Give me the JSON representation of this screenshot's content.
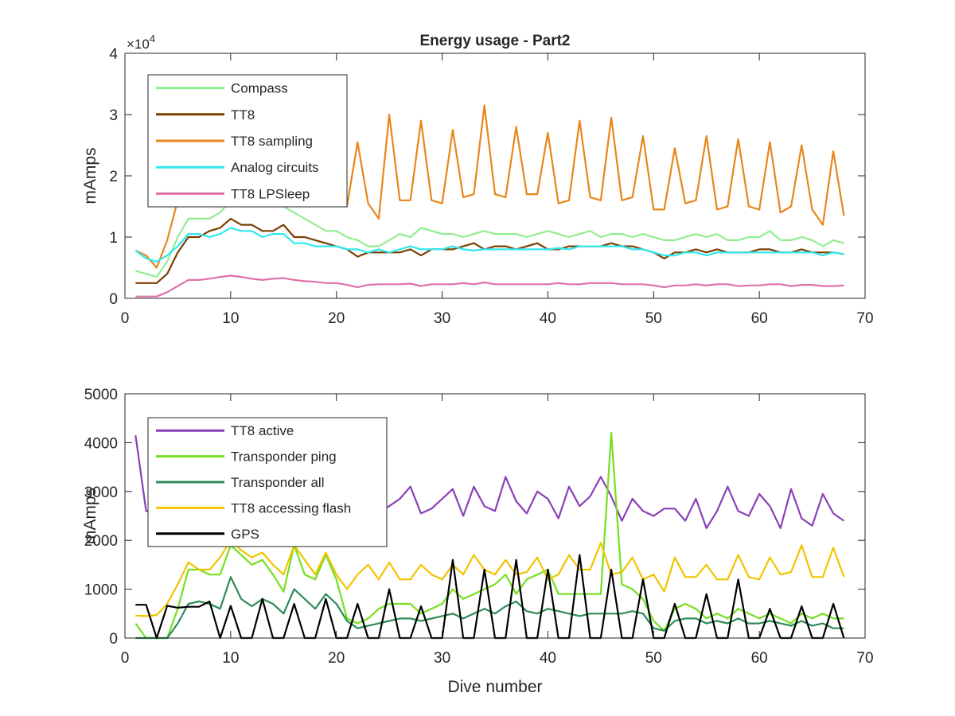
{
  "chart_data": [
    {
      "type": "line",
      "title": "Energy usage - Part2",
      "xlabel": "",
      "ylabel": "mAmps",
      "exponent_label": "×10",
      "exponent_power": "4",
      "xlim": [
        0,
        70
      ],
      "ylim": [
        0,
        40000
      ],
      "xticks": [
        0,
        10,
        20,
        30,
        40,
        50,
        60,
        70
      ],
      "yticks": [
        0,
        10000,
        20000,
        30000,
        40000
      ],
      "ytick_labels": [
        "0",
        "1",
        "2",
        "3",
        "4"
      ],
      "legend_position": "top-left",
      "series": [
        {
          "name": "Compass",
          "color": "#90ee90",
          "x_start": 1,
          "values": [
            4500,
            4000,
            3500,
            6000,
            10000,
            13000,
            13000,
            13000,
            14000,
            16000,
            15000,
            15000,
            15000,
            15000,
            15000,
            14000,
            13000,
            12000,
            11000,
            11000,
            10000,
            9500,
            8500,
            8500,
            9500,
            10500,
            10000,
            11500,
            11000,
            10500,
            10500,
            10000,
            10500,
            11000,
            10500,
            10500,
            10500,
            10000,
            10500,
            11000,
            10500,
            10000,
            10500,
            11000,
            10000,
            10500,
            10500,
            10000,
            10500,
            10000,
            9500,
            9500,
            10000,
            10500,
            10000,
            10500,
            9500,
            9500,
            10000,
            10000,
            11000,
            9500,
            9500,
            10000,
            9500,
            8500,
            9500,
            9000
          ]
        },
        {
          "name": "TT8",
          "color": "#7b3f00",
          "x_start": 1,
          "values": [
            2500,
            2500,
            2500,
            4000,
            7500,
            10000,
            10000,
            11000,
            11500,
            13000,
            12000,
            12000,
            11000,
            11000,
            12000,
            10000,
            10000,
            9500,
            9000,
            8500,
            8000,
            6800,
            7500,
            7500,
            7500,
            7500,
            8000,
            7000,
            8000,
            8000,
            8000,
            8500,
            9000,
            8000,
            8500,
            8500,
            8000,
            8500,
            9000,
            8000,
            8000,
            8500,
            8500,
            8500,
            8500,
            9000,
            8500,
            8500,
            8000,
            7500,
            6500,
            7500,
            7500,
            8000,
            7500,
            8000,
            7500,
            7500,
            7500,
            8000,
            8000,
            7500,
            7500,
            8000,
            7500,
            7500,
            7500,
            7200
          ]
        },
        {
          "name": "TT8 sampling",
          "color": "#e8861a",
          "x_start": 1,
          "values": [
            7800,
            7000,
            5000,
            9500,
            16000,
            20000,
            22000,
            22000,
            23000,
            24000,
            24000,
            23000,
            24000,
            22000,
            21000,
            22000,
            21000,
            20000,
            19000,
            17000,
            15000,
            25500,
            15500,
            13000,
            30000,
            16000,
            16000,
            29000,
            16000,
            15500,
            27500,
            16500,
            17000,
            31500,
            17000,
            16500,
            28000,
            17000,
            17000,
            27000,
            15500,
            16000,
            29000,
            16500,
            16000,
            29500,
            16000,
            16500,
            26500,
            14500,
            14500,
            24500,
            15500,
            16000,
            26500,
            14500,
            15000,
            26000,
            15000,
            14500,
            25500,
            14000,
            15000,
            25000,
            14500,
            12000,
            24000,
            13500
          ]
        },
        {
          "name": "Analog circuits",
          "color": "#30e8ef",
          "x_start": 1,
          "values": [
            7800,
            6500,
            6000,
            7000,
            8500,
            10500,
            10500,
            10000,
            10500,
            11500,
            11000,
            11000,
            10000,
            10500,
            10500,
            9000,
            9000,
            8500,
            8500,
            8500,
            8000,
            8000,
            7500,
            8000,
            7500,
            8000,
            8500,
            8000,
            8000,
            8000,
            8500,
            8000,
            7800,
            8000,
            8000,
            8000,
            8000,
            8000,
            8000,
            8000,
            8200,
            8000,
            8500,
            8500,
            8500,
            8500,
            8500,
            8000,
            8000,
            7500,
            7000,
            7000,
            7500,
            7500,
            7000,
            7500,
            7500,
            7500,
            7500,
            7500,
            7500,
            7500,
            7500,
            7500,
            7500,
            7000,
            7500,
            7200
          ]
        },
        {
          "name": "TT8 LPSleep",
          "color": "#e070a8",
          "x_start": 1,
          "values": [
            300,
            300,
            300,
            1000,
            2000,
            3000,
            3000,
            3200,
            3500,
            3700,
            3500,
            3200,
            3000,
            3200,
            3300,
            3000,
            2800,
            2700,
            2500,
            2500,
            2200,
            1800,
            2200,
            2300,
            2300,
            2300,
            2400,
            2000,
            2300,
            2300,
            2300,
            2500,
            2300,
            2600,
            2300,
            2300,
            2300,
            2300,
            2300,
            2300,
            2500,
            2300,
            2300,
            2500,
            2500,
            2500,
            2300,
            2300,
            2300,
            2100,
            1800,
            2100,
            2100,
            2300,
            2100,
            2300,
            2300,
            2000,
            2100,
            2100,
            2300,
            2300,
            2000,
            2200,
            2200,
            2000,
            2000,
            2100
          ]
        }
      ]
    },
    {
      "type": "line",
      "title": "",
      "xlabel": "Dive number",
      "ylabel": "mAmps",
      "xlim": [
        0,
        70
      ],
      "ylim": [
        0,
        5000
      ],
      "xticks": [
        0,
        10,
        20,
        30,
        40,
        50,
        60,
        70
      ],
      "yticks": [
        0,
        1000,
        2000,
        3000,
        4000,
        5000
      ],
      "ytick_labels": [
        "0",
        "1000",
        "2000",
        "3000",
        "4000",
        "5000"
      ],
      "legend_position": "top-left",
      "series": [
        {
          "name": "TT8 active",
          "color": "#8a3fb8",
          "x_start": 1,
          "values": [
            4150,
            2600,
            2600,
            2600,
            2800,
            2800,
            2800,
            2800,
            2800,
            2800,
            2800,
            2800,
            2800,
            2800,
            2800,
            2800,
            2800,
            2800,
            2800,
            2800,
            2800,
            2800,
            2700,
            2600,
            2700,
            2850,
            3100,
            2550,
            2650,
            2850,
            3050,
            2500,
            3100,
            2700,
            2600,
            3300,
            2800,
            2550,
            3000,
            2850,
            2450,
            3100,
            2700,
            2900,
            3300,
            2900,
            2400,
            2850,
            2600,
            2500,
            2650,
            2650,
            2400,
            2850,
            2250,
            2600,
            3100,
            2600,
            2500,
            2950,
            2700,
            2250,
            3050,
            2450,
            2300,
            2950,
            2550,
            2400
          ]
        },
        {
          "name": "Transponder ping",
          "color": "#76e020",
          "x_start": 1,
          "values": [
            300,
            0,
            0,
            0,
            600,
            1400,
            1400,
            1300,
            1300,
            1900,
            1700,
            1500,
            1600,
            1300,
            950,
            1900,
            1300,
            1200,
            1700,
            1200,
            400,
            300,
            400,
            600,
            700,
            700,
            700,
            500,
            600,
            700,
            1000,
            800,
            900,
            1000,
            1100,
            1300,
            900,
            1200,
            1300,
            1400,
            900,
            900,
            900,
            900,
            900,
            4200,
            1100,
            1000,
            800,
            350,
            150,
            600,
            700,
            600,
            400,
            500,
            400,
            600,
            500,
            400,
            500,
            400,
            300,
            500,
            400,
            500,
            400,
            400
          ]
        },
        {
          "name": "Transponder all",
          "color": "#2e8b57",
          "x_start": 1,
          "values": [
            0,
            0,
            0,
            0,
            300,
            700,
            750,
            700,
            600,
            1250,
            800,
            650,
            800,
            700,
            500,
            1000,
            800,
            600,
            900,
            700,
            350,
            200,
            250,
            300,
            350,
            400,
            400,
            350,
            400,
            450,
            500,
            400,
            500,
            600,
            500,
            650,
            750,
            550,
            500,
            600,
            550,
            500,
            450,
            500,
            500,
            500,
            500,
            550,
            500,
            200,
            150,
            350,
            400,
            400,
            300,
            350,
            300,
            400,
            300,
            300,
            350,
            300,
            250,
            350,
            250,
            300,
            200,
            200
          ]
        },
        {
          "name": "TT8 accessing flash",
          "color": "#f0c400",
          "x_start": 1,
          "values": [
            460,
            450,
            470,
            700,
            1100,
            1550,
            1400,
            1400,
            1650,
            2000,
            1800,
            1650,
            1750,
            1500,
            1300,
            1900,
            1600,
            1300,
            1750,
            1300,
            1000,
            1300,
            1500,
            1200,
            1550,
            1200,
            1200,
            1500,
            1300,
            1200,
            1500,
            1300,
            1700,
            1400,
            1300,
            1600,
            1300,
            1350,
            1650,
            1200,
            1300,
            1700,
            1400,
            1400,
            1950,
            1300,
            1350,
            1650,
            1200,
            1300,
            950,
            1650,
            1250,
            1250,
            1500,
            1200,
            1200,
            1700,
            1250,
            1200,
            1650,
            1300,
            1350,
            1900,
            1250,
            1250,
            1850,
            1250
          ]
        },
        {
          "name": "GPS",
          "color": "#000000",
          "x_start": 1,
          "values": [
            680,
            680,
            0,
            660,
            620,
            640,
            640,
            750,
            0,
            660,
            0,
            0,
            800,
            0,
            0,
            700,
            0,
            0,
            800,
            0,
            0,
            700,
            0,
            0,
            1000,
            0,
            0,
            650,
            0,
            0,
            1600,
            0,
            0,
            1400,
            0,
            0,
            1600,
            0,
            0,
            1400,
            0,
            0,
            1700,
            0,
            0,
            1400,
            0,
            0,
            1200,
            0,
            0,
            700,
            0,
            0,
            900,
            0,
            0,
            1200,
            0,
            0,
            600,
            0,
            0,
            650,
            0,
            0,
            700,
            0
          ]
        }
      ]
    }
  ]
}
